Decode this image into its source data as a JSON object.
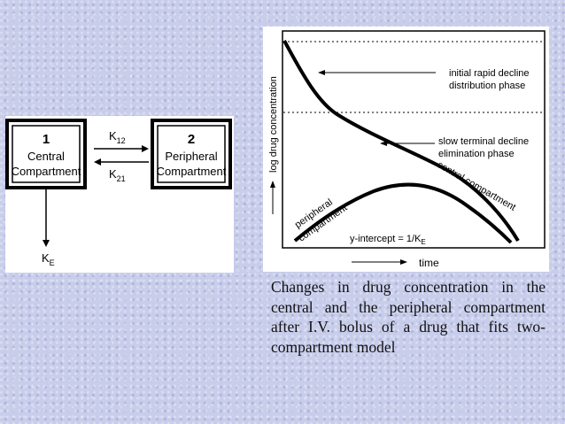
{
  "compartment_model": {
    "central": {
      "number": "1",
      "line1": "Central",
      "line2": "Compartment"
    },
    "peripheral": {
      "number": "2",
      "line1": "Peripheral",
      "line2": "Compartment"
    },
    "k12": {
      "main": "K",
      "sub": "12"
    },
    "k21": {
      "main": "K",
      "sub": "21"
    },
    "ke": {
      "main": "K",
      "sub": "E"
    }
  },
  "chart": {
    "ylabel": "log drug concentration",
    "xlabel": "time",
    "annotations": {
      "initial_l1": "initial rapid decline",
      "initial_l2": "distribution phase",
      "terminal_l1": "slow terminal decline",
      "terminal_l2": "elimination phase",
      "central": "central compartment",
      "peripheral_l1": "peripheral",
      "peripheral_l2": "compartment",
      "intercept_main": "y-intercept = 1/K",
      "intercept_sub": "E"
    }
  },
  "caption": "Changes in drug concentration in the central and the peripheral compartment after I.V. bolus of a drug that fits two-compartment model"
}
